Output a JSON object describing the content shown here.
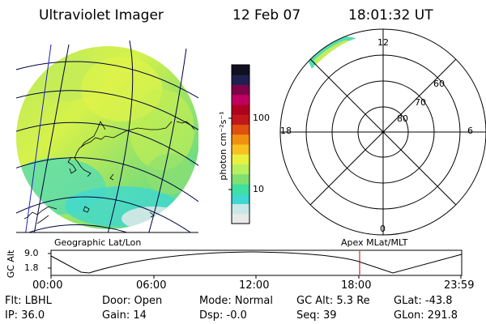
{
  "header": {
    "instrument": "Ultraviolet Imager",
    "date": "12 Feb 07",
    "time": "18:01:32 UT"
  },
  "colorbar": {
    "unit_label": "photon cm⁻²s⁻¹",
    "tick_100": "100",
    "tick_10": "10",
    "colors": [
      "#e8e8e8",
      "#c8e8e8",
      "#40d8d0",
      "#40e0a0",
      "#80e070",
      "#b8f060",
      "#e8f040",
      "#f8c020",
      "#f09010",
      "#e05010",
      "#c01818",
      "#b00020",
      "#c00060",
      "#80004a",
      "#202050",
      "#101020"
    ]
  },
  "map": {
    "label": "Geographic Lat/Lon"
  },
  "polar": {
    "label": "Apex  MLat/MLT",
    "mlt_top": "12",
    "mlt_left": "18",
    "mlt_right": "6",
    "mlt_bottom": "0",
    "lat_60": "60",
    "lat_70": "70",
    "lat_80": "80"
  },
  "altitude_plot": {
    "ylabel": "GC Alt",
    "ymax": "9.0",
    "ymin": "1.8",
    "xticks": [
      "00:00",
      "06:00",
      "12:00",
      "18:00",
      "23:59"
    ],
    "current_time_marker": "18:00"
  },
  "status": {
    "filter": "Flt: LBHL",
    "ip": "IP: 36.0",
    "door": "Door: Open",
    "gain": "Gain: 14",
    "mode": "Mode: Normal",
    "dsp": "Dsp:    -0.0",
    "gc_alt": "GC Alt: 5.3 Re",
    "seq": "Seq: 39",
    "glat": "GLat: -43.8",
    "glon": "GLon: 291.8"
  }
}
